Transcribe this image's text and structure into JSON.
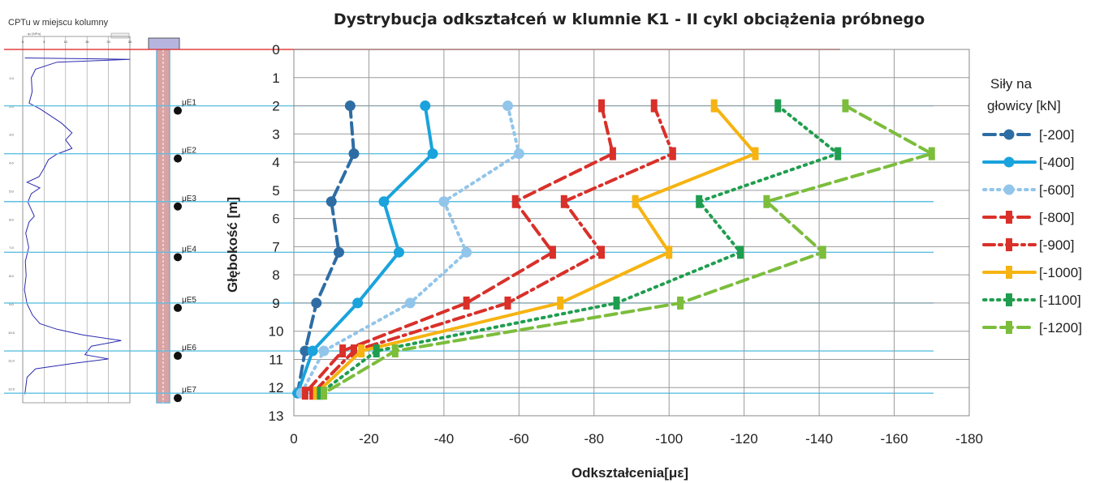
{
  "cptu_panel": {
    "title": "CPTu  w miejscu kolumny",
    "axis_label": "qc [MPa]",
    "top_ticks": [
      "0",
      "5",
      "10",
      "15",
      "20",
      "25"
    ],
    "depth_ticks": [
      "1.0",
      "2.0",
      "3.0",
      "4.0",
      "5.0",
      "6.0",
      "7.0",
      "8.0",
      "9.0",
      "10.0",
      "11.0",
      "12.0"
    ]
  },
  "sensors": [
    "μE1",
    "μE2",
    "μE3",
    "μE4",
    "μE5",
    "μE6",
    "μE7"
  ],
  "colors": {
    "horizontal_lines": "#5fbfe0",
    "zero_line": "#e04040",
    "profile_line": "#2b2bb0",
    "column_fill": "#d9a3a3",
    "column_border": "#6fb0d8"
  },
  "chart_data": {
    "type": "line",
    "title": "Dystrybucja odkształceń w klumnie K1 - II cykl obciążenia próbnego",
    "xlabel": "Odkształcenia[με]",
    "ylabel": "Głębokość [m]",
    "xlim": [
      0,
      -180
    ],
    "ylim": [
      0,
      13
    ],
    "x_ticks": [
      0,
      -20,
      -40,
      -60,
      -80,
      -100,
      -120,
      -140,
      -160,
      -180
    ],
    "x_tick_labels": [
      "0",
      "-20",
      "-40",
      "-60",
      "-80",
      "-100",
      "-120",
      "-140",
      "-160",
      "-180"
    ],
    "y_ticks": [
      0,
      1,
      2,
      3,
      4,
      5,
      6,
      7,
      8,
      9,
      10,
      11,
      12,
      13
    ],
    "y_tick_labels": [
      "0",
      "1",
      "2",
      "3",
      "4",
      "5",
      "6",
      "7",
      "8",
      "9",
      "10",
      "11",
      "12",
      "13"
    ],
    "grid": true,
    "legend_title": "Siły na głowicy [kN]",
    "legend_position": "right",
    "depths": [
      2.0,
      3.7,
      5.4,
      7.2,
      9.0,
      10.7,
      12.2
    ],
    "series": [
      {
        "name": "[-200]",
        "color": "#2e6da4",
        "style": "dashed",
        "marker": "round",
        "values": [
          -15,
          -16,
          -10,
          -12,
          -6,
          -3,
          -1
        ]
      },
      {
        "name": "[-400]",
        "color": "#1aa3dc",
        "style": "solid",
        "marker": "round",
        "values": [
          -35,
          -37,
          -24,
          -28,
          -17,
          -5,
          -1
        ]
      },
      {
        "name": "[-600]",
        "color": "#92c5ea",
        "style": "dotted",
        "marker": "round",
        "values": [
          -57,
          -60,
          -40,
          -46,
          -31,
          -8,
          -2
        ]
      },
      {
        "name": "[-800]",
        "color": "#d9302a",
        "style": "dashed",
        "marker": "dash",
        "values": [
          -82,
          -85,
          -59,
          -69,
          -46,
          -13,
          -3
        ]
      },
      {
        "name": "[-900]",
        "color": "#d9302a",
        "style": "dashdot",
        "marker": "dash",
        "values": [
          -96,
          -101,
          -72,
          -82,
          -57,
          -16,
          -5
        ]
      },
      {
        "name": "[-1000]",
        "color": "#f6b311",
        "style": "solid",
        "marker": "dash",
        "values": [
          -112,
          -123,
          -91,
          -100,
          -71,
          -18,
          -6
        ]
      },
      {
        "name": "[-1100]",
        "color": "#1f9e4f",
        "style": "dotted",
        "marker": "dash",
        "values": [
          -129,
          -145,
          -108,
          -119,
          -86,
          -22,
          -7
        ]
      },
      {
        "name": "[-1200]",
        "color": "#7cbd3c",
        "style": "dashed",
        "marker": "dash",
        "values": [
          -147,
          -170,
          -126,
          -141,
          -103,
          -27,
          -8
        ]
      }
    ]
  }
}
